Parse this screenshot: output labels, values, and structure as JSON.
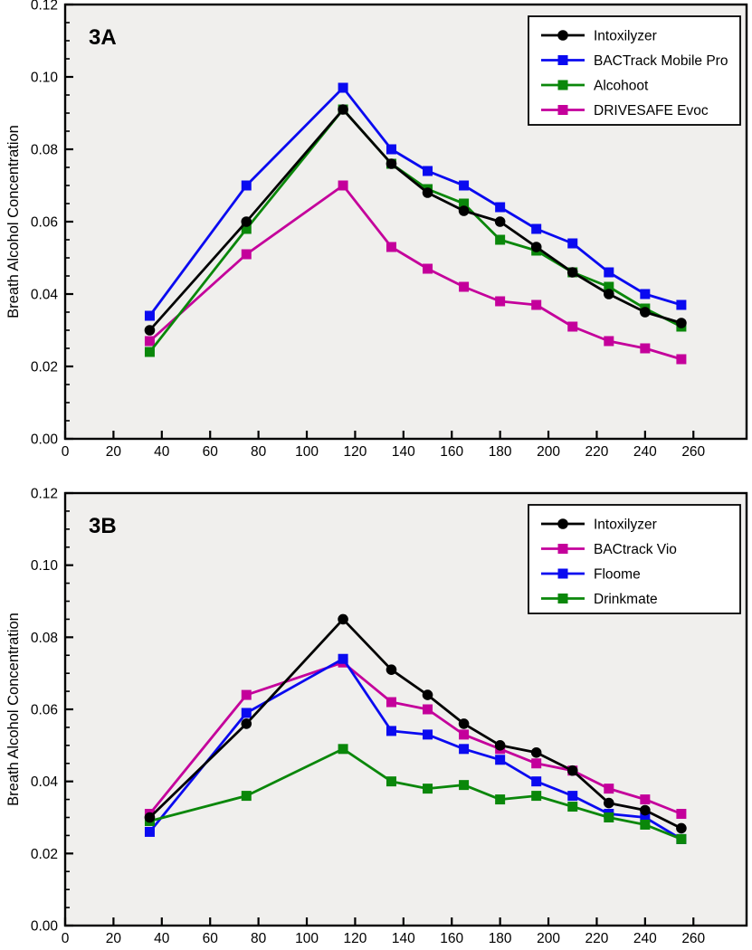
{
  "figure": {
    "background": "#ffffff",
    "plot_background": "#f0efed",
    "frame_color": "#000000"
  },
  "chart_data": [
    {
      "type": "line",
      "panel_label": "3A",
      "ylabel": "Breath Alcohol Concentration",
      "xlabel": "",
      "xlim": [
        0,
        282
      ],
      "ylim": [
        0,
        0.12
      ],
      "grid": false,
      "legend_position": "top-right",
      "y_minor_step": 0.005,
      "x_tick_labels": [
        "0",
        "20",
        "40",
        "60",
        "80",
        "100",
        "120",
        "140",
        "160",
        "180",
        "200",
        "220",
        "240",
        "260"
      ],
      "y_tick_labels": [
        "0.00",
        "0.02",
        "0.04",
        "0.06",
        "0.08",
        "0.10",
        "0.12"
      ],
      "x": [
        35,
        75,
        115,
        135,
        150,
        165,
        180,
        195,
        210,
        225,
        240,
        255
      ],
      "legend": [
        "Intoxilyzer",
        "BACTrack Mobile Pro",
        "Alcohoot",
        "DRIVESAFE Evoc"
      ],
      "series": [
        {
          "name": "DRIVESAFE Evoc",
          "color": "#C4009B",
          "marker": "square",
          "values": [
            0.027,
            0.051,
            0.07,
            0.053,
            0.047,
            0.042,
            0.038,
            0.037,
            0.031,
            0.027,
            0.025,
            0.022
          ]
        },
        {
          "name": "Alcohoot",
          "color": "#0A870A",
          "marker": "square",
          "values": [
            0.024,
            0.058,
            0.091,
            0.076,
            0.069,
            0.065,
            0.055,
            0.052,
            0.046,
            0.042,
            0.036,
            0.031
          ]
        },
        {
          "name": "BACTrack Mobile Pro",
          "color": "#0A0AF0",
          "marker": "square",
          "values": [
            0.034,
            0.07,
            0.097,
            0.08,
            0.074,
            0.07,
            0.064,
            0.058,
            0.054,
            0.046,
            0.04,
            0.037
          ]
        },
        {
          "name": "Intoxilyzer",
          "color": "#000000",
          "marker": "circle",
          "values": [
            0.03,
            0.06,
            0.091,
            0.076,
            0.068,
            0.063,
            0.06,
            0.053,
            0.046,
            0.04,
            0.035,
            0.032
          ]
        }
      ]
    },
    {
      "type": "line",
      "panel_label": "3B",
      "ylabel": "Breath Alcohol Concentration",
      "xlabel": "",
      "xlim": [
        0,
        282
      ],
      "ylim": [
        0,
        0.12
      ],
      "grid": false,
      "legend_position": "top-right",
      "y_minor_step": 0.005,
      "x_tick_labels": [
        "0",
        "20",
        "40",
        "60",
        "80",
        "100",
        "120",
        "140",
        "160",
        "180",
        "200",
        "220",
        "240",
        "260"
      ],
      "y_tick_labels": [
        "0.00",
        "0.02",
        "0.04",
        "0.06",
        "0.08",
        "0.10",
        "0.12"
      ],
      "x": [
        35,
        75,
        115,
        135,
        150,
        165,
        180,
        195,
        210,
        225,
        240,
        255
      ],
      "legend": [
        "Intoxilyzer",
        "BACtrack Vio",
        "Floome",
        "Drinkmate"
      ],
      "series": [
        {
          "name": "BACtrack Vio",
          "color": "#C4009B",
          "marker": "square",
          "values": [
            0.031,
            0.064,
            0.073,
            0.062,
            0.06,
            0.053,
            0.049,
            0.045,
            0.043,
            0.038,
            0.035,
            0.031
          ]
        },
        {
          "name": "Floome",
          "color": "#0A0AF0",
          "marker": "square",
          "values": [
            0.026,
            0.059,
            0.074,
            0.054,
            0.053,
            0.049,
            0.046,
            0.04,
            0.036,
            0.031,
            0.03,
            0.024
          ]
        },
        {
          "name": "Drinkmate",
          "color": "#0A870A",
          "marker": "square",
          "values": [
            0.029,
            0.036,
            0.049,
            0.04,
            0.038,
            0.039,
            0.035,
            0.036,
            0.033,
            0.03,
            0.028,
            0.024
          ]
        },
        {
          "name": "Intoxilyzer",
          "color": "#000000",
          "marker": "circle",
          "values": [
            0.03,
            0.056,
            0.085,
            0.071,
            0.064,
            0.056,
            0.05,
            0.048,
            0.043,
            0.034,
            0.032,
            0.027
          ]
        }
      ]
    }
  ]
}
